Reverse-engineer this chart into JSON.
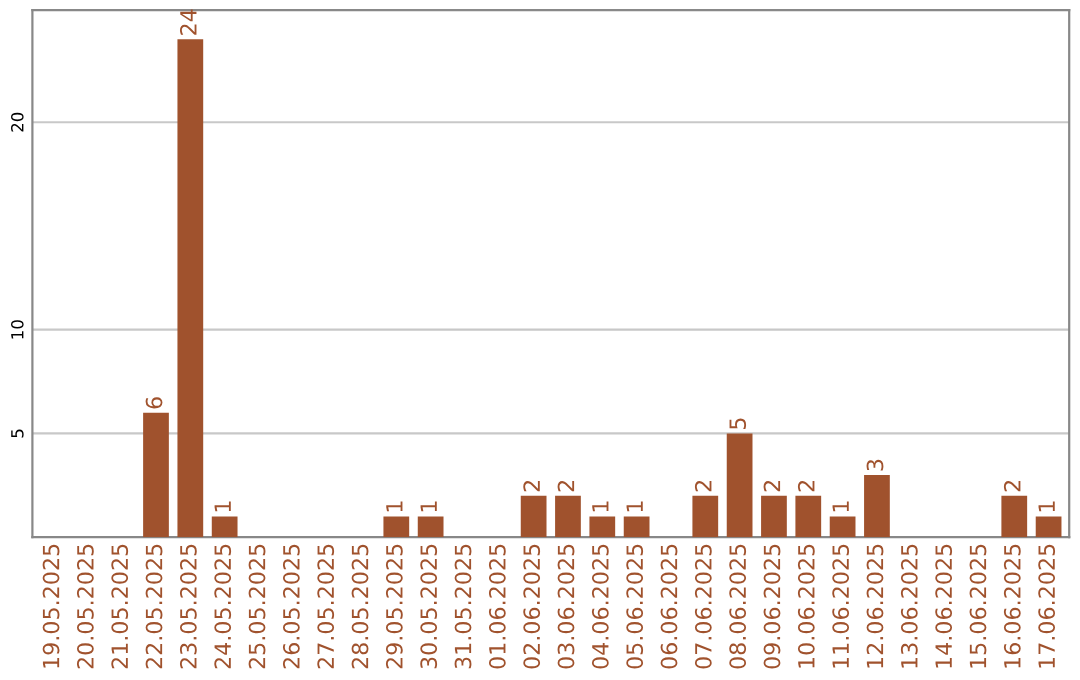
{
  "chart_data": {
    "type": "bar",
    "categories": [
      "19.05.2025",
      "20.05.2025",
      "21.05.2025",
      "22.05.2025",
      "23.05.2025",
      "24.05.2025",
      "25.05.2025",
      "26.05.2025",
      "27.05.2025",
      "28.05.2025",
      "29.05.2025",
      "30.05.2025",
      "31.05.2025",
      "01.06.2025",
      "02.06.2025",
      "03.06.2025",
      "04.06.2025",
      "05.06.2025",
      "06.06.2025",
      "07.06.2025",
      "08.06.2025",
      "09.06.2025",
      "10.06.2025",
      "11.06.2025",
      "12.06.2025",
      "13.06.2025",
      "14.06.2025",
      "15.06.2025",
      "16.06.2025",
      "17.06.2025"
    ],
    "values": [
      0,
      0,
      0,
      6,
      24,
      1,
      0,
      0,
      0,
      0,
      1,
      1,
      0,
      0,
      2,
      2,
      1,
      1,
      0,
      2,
      5,
      2,
      2,
      1,
      3,
      0,
      0,
      0,
      2,
      1
    ],
    "value_labels": [
      null,
      null,
      null,
      "6",
      "24",
      "1",
      null,
      null,
      null,
      null,
      "1",
      "1",
      null,
      null,
      "2",
      "2",
      "1",
      "1",
      null,
      "2",
      "5",
      "2",
      "2",
      "1",
      "3",
      null,
      null,
      null,
      "2",
      "1"
    ],
    "color": "#a0522d",
    "ylim": [
      0,
      25.4
    ],
    "yticks": [
      5,
      10,
      20
    ],
    "grid": "y"
  }
}
